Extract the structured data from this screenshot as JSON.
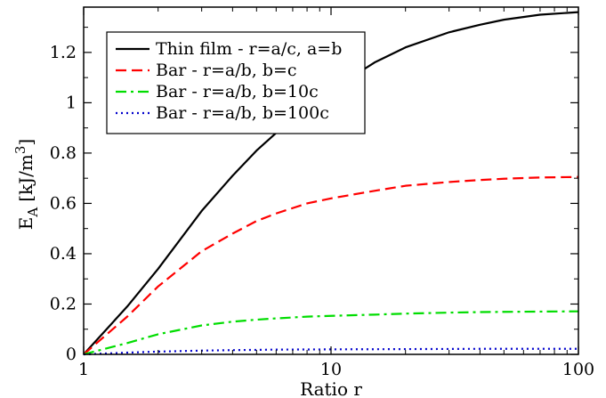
{
  "chart_data": {
    "type": "line",
    "title": "",
    "xlabel": "Ratio r",
    "ylabel": "E_A [kJ/m^3]",
    "ylabel_parts": {
      "main": "E",
      "sub": "A",
      "unit": "[kJ/m",
      "sup": "3",
      "close": "]"
    },
    "xscale": "log",
    "xlim": [
      1,
      100
    ],
    "ylim": [
      0,
      1.38
    ],
    "xticks": [
      1,
      10,
      100
    ],
    "xtick_labels": [
      "1",
      "10",
      "100"
    ],
    "yticks": [
      0,
      0.2,
      0.4,
      0.6,
      0.8,
      1,
      1.2
    ],
    "ytick_labels": [
      "0",
      "0.2",
      "0.4",
      "0.6",
      "0.8",
      "1",
      "1.2"
    ],
    "grid": false,
    "legend_position": "top-left",
    "series": [
      {
        "name": "Thin film - r=a/c, a=b",
        "color": "#000000",
        "style": "solid",
        "x": [
          1,
          1.5,
          2,
          3,
          4,
          5,
          6,
          8,
          10,
          15,
          20,
          30,
          40,
          50,
          70,
          100
        ],
        "y": [
          0,
          0.19,
          0.34,
          0.57,
          0.71,
          0.81,
          0.88,
          0.98,
          1.05,
          1.16,
          1.22,
          1.28,
          1.31,
          1.33,
          1.35,
          1.36
        ]
      },
      {
        "name": "Bar - r=a/b, b=c",
        "color": "#ff0000",
        "style": "dashed",
        "x": [
          1,
          1.5,
          2,
          3,
          4,
          5,
          6,
          8,
          10,
          15,
          20,
          30,
          40,
          50,
          70,
          100
        ],
        "y": [
          0,
          0.15,
          0.27,
          0.41,
          0.48,
          0.53,
          0.56,
          0.6,
          0.62,
          0.65,
          0.67,
          0.685,
          0.693,
          0.698,
          0.703,
          0.705
        ]
      },
      {
        "name": "Bar - r=a/b, b=10c",
        "color": "#00dd00",
        "style": "dashdot",
        "x": [
          1,
          1.5,
          2,
          3,
          4,
          5,
          6,
          8,
          10,
          15,
          20,
          30,
          40,
          50,
          70,
          100
        ],
        "y": [
          0,
          0.045,
          0.08,
          0.115,
          0.13,
          0.138,
          0.143,
          0.15,
          0.153,
          0.158,
          0.162,
          0.166,
          0.168,
          0.169,
          0.17,
          0.171
        ]
      },
      {
        "name": "Bar - r=a/b, b=100c",
        "color": "#0000cc",
        "style": "dotted",
        "x": [
          1,
          1.5,
          2,
          3,
          4,
          5,
          6,
          8,
          10,
          15,
          20,
          30,
          40,
          50,
          70,
          100
        ],
        "y": [
          0,
          0.007,
          0.011,
          0.015,
          0.017,
          0.018,
          0.019,
          0.0195,
          0.02,
          0.0205,
          0.021,
          0.0215,
          0.022,
          0.022,
          0.022,
          0.022
        ]
      }
    ]
  }
}
